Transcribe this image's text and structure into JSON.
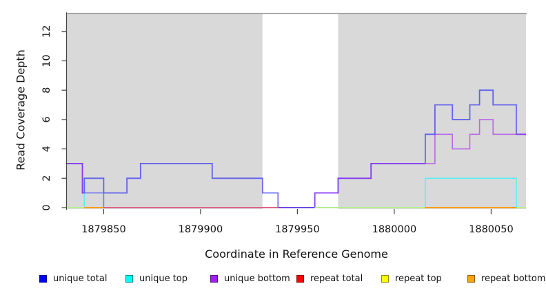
{
  "figure": {
    "panel_background": "#d9d9d9",
    "gap_band_color": "#ffffff",
    "panel_top_border_color": "#999999",
    "axis_color": "#444444"
  },
  "axes": {
    "x": {
      "title": "Coordinate in Reference Genome",
      "min": 1879831,
      "max": 1880068,
      "ticks": [
        1879850,
        1879900,
        1879950,
        1880000,
        1880050
      ],
      "tick_labels": [
        "1879850",
        "1879900",
        "1879950",
        "1880000",
        "1880050"
      ]
    },
    "y": {
      "title": "Read Coverage Depth",
      "min": 0,
      "max": 13.2,
      "ticks": [
        0,
        2,
        4,
        6,
        8,
        10,
        12
      ],
      "tick_labels": [
        "0",
        "2",
        "4",
        "6",
        "8",
        "10",
        "12"
      ]
    }
  },
  "chart_data": {
    "type": "line",
    "style": "step",
    "title": "",
    "xlabel": "Coordinate in Reference Genome",
    "ylabel": "Read Coverage Depth",
    "xlim": [
      1879831,
      1880068
    ],
    "ylim": [
      0,
      13.2
    ],
    "grid": false,
    "legend_position": "bottom",
    "background_bands": [
      {
        "x_start": 1879831,
        "x_end": 1879932,
        "color": "#d9d9d9"
      },
      {
        "x_start": 1879932,
        "x_end": 1879971,
        "color": "#ffffff"
      },
      {
        "x_start": 1879971,
        "x_end": 1880068,
        "color": "#d9d9d9"
      }
    ],
    "series": [
      {
        "name": "unique total",
        "color": "#0000FF",
        "opacity": 0.55,
        "width": 1.8,
        "steps": [
          [
            1879831,
            3
          ],
          [
            1879839,
            1
          ],
          [
            1879840,
            2
          ],
          [
            1879850,
            1
          ],
          [
            1879862,
            2
          ],
          [
            1879869,
            3
          ],
          [
            1879906,
            2
          ],
          [
            1879932,
            1
          ],
          [
            1879940,
            0
          ],
          [
            1879959,
            1
          ],
          [
            1879971,
            2
          ],
          [
            1879988,
            3
          ],
          [
            1880016,
            5
          ],
          [
            1880021,
            7
          ],
          [
            1880030,
            6
          ],
          [
            1880039,
            7
          ],
          [
            1880044,
            8
          ],
          [
            1880051,
            7
          ],
          [
            1880063,
            5
          ]
        ]
      },
      {
        "name": "unique top",
        "color": "#00FFFF",
        "opacity": 0.6,
        "width": 1.6,
        "steps": [
          [
            1879831,
            0
          ],
          [
            1879840,
            1
          ],
          [
            1879850,
            0
          ],
          [
            1880016,
            2
          ],
          [
            1880063,
            0
          ]
        ]
      },
      {
        "name": "unique bottom",
        "color": "#A020F0",
        "opacity": 0.6,
        "width": 1.6,
        "steps": [
          [
            1879831,
            3
          ],
          [
            1879839,
            1
          ],
          [
            1879850,
            0
          ],
          [
            1879959,
            1
          ],
          [
            1879971,
            2
          ],
          [
            1879988,
            3
          ],
          [
            1880021,
            5
          ],
          [
            1880030,
            4
          ],
          [
            1880039,
            5
          ],
          [
            1880044,
            6
          ],
          [
            1880051,
            5
          ]
        ]
      },
      {
        "name": "repeat total",
        "color": "#FF0000",
        "opacity": 0.5,
        "width": 1.6,
        "steps": [
          [
            1879831,
            0
          ]
        ]
      },
      {
        "name": "repeat top",
        "color": "#FFFF00",
        "opacity": 0.5,
        "width": 1.6,
        "steps": [
          [
            1879831,
            0
          ]
        ]
      },
      {
        "name": "repeat bottom",
        "color": "#FFA500",
        "opacity": 0.5,
        "width": 1.6,
        "steps": [
          [
            1879831,
            0
          ]
        ]
      }
    ],
    "baseline_segments": [
      {
        "x_start": 1879831,
        "x_end": 1879840,
        "color": "#b7ee90"
      },
      {
        "x_start": 1879840,
        "x_end": 1879850,
        "color": "#ff9d00"
      },
      {
        "x_start": 1879850,
        "x_end": 1879940,
        "color": "#de6488"
      },
      {
        "x_start": 1879940,
        "x_end": 1879959,
        "color": "#6b4ae0"
      },
      {
        "x_start": 1879959,
        "x_end": 1880016,
        "color": "#b7ee90"
      },
      {
        "x_start": 1880016,
        "x_end": 1880063,
        "color": "#ff9d00"
      },
      {
        "x_start": 1880063,
        "x_end": 1880068,
        "color": "#b7ee90"
      }
    ]
  },
  "legend": {
    "items": [
      {
        "label": "unique total",
        "color": "#0000FF"
      },
      {
        "label": "unique top",
        "color": "#00FFFF"
      },
      {
        "label": "unique bottom",
        "color": "#A020F0"
      },
      {
        "label": "repeat total",
        "color": "#FF0000"
      },
      {
        "label": "repeat top",
        "color": "#FFFF00"
      },
      {
        "label": "repeat bottom",
        "color": "#FFA500"
      }
    ]
  }
}
